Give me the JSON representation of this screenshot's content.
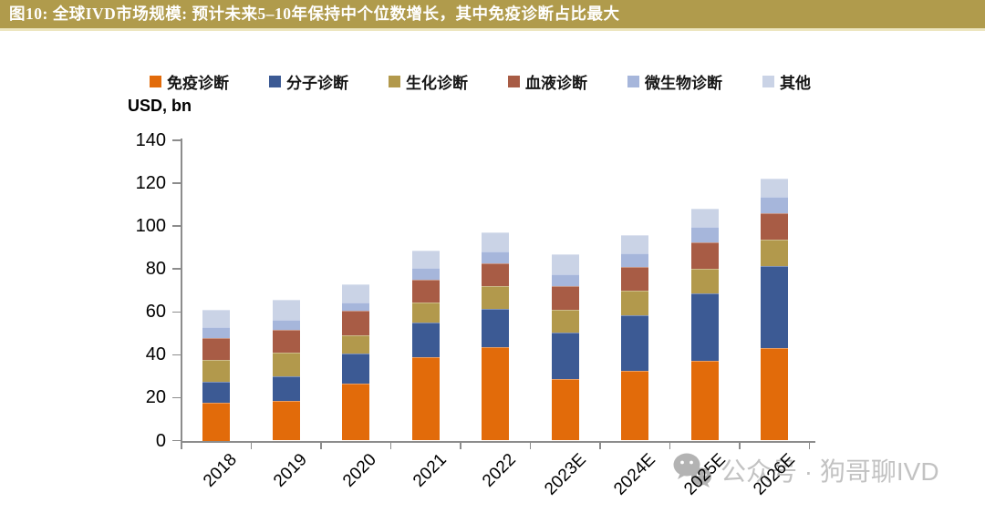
{
  "header": {
    "title": "图10:  全球IVD市场规模:  预计未来5–10年保持中个位数增长，其中免疫诊断占比最大",
    "bar_color": "#B09B4C"
  },
  "watermark": {
    "text": "公众号 · 狗哥聊IVD",
    "icon": "wechat-icon",
    "color": "#C2C2C2"
  },
  "chart_data": {
    "type": "bar",
    "stacked": true,
    "unit_label": "USD, bn",
    "categories": [
      "2018",
      "2019",
      "2020",
      "2021",
      "2022",
      "2023E",
      "2024E",
      "2025E",
      "2026E"
    ],
    "series": [
      {
        "name": "免疫诊断",
        "color": "#E26B0A",
        "values": [
          17.5,
          18.5,
          26.5,
          39,
          43.5,
          28.5,
          32.5,
          37,
          43
        ]
      },
      {
        "name": "分子诊断",
        "color": "#3C5A94",
        "values": [
          10,
          11.5,
          14,
          16,
          18,
          22,
          26,
          31.5,
          38.5
        ]
      },
      {
        "name": "生化诊断",
        "color": "#B2994C",
        "values": [
          10,
          11,
          8.5,
          9.5,
          10.5,
          10.5,
          11.5,
          11.5,
          12
        ]
      },
      {
        "name": "血液诊断",
        "color": "#A85C45",
        "values": [
          10.5,
          10.5,
          11.5,
          10.5,
          10.5,
          11,
          11,
          12.5,
          12.5
        ]
      },
      {
        "name": "微生物诊断",
        "color": "#A6B6DB",
        "values": [
          5,
          5,
          4,
          5.5,
          5.5,
          5.5,
          6.5,
          7,
          7.5
        ]
      },
      {
        "name": "其他",
        "color": "#CAD3E6",
        "values": [
          8,
          9,
          8.5,
          8,
          9,
          9.5,
          8.5,
          8.5,
          8.5
        ]
      }
    ],
    "totals": [
      61,
      66,
      73,
      89,
      97,
      87,
      96,
      108,
      122
    ],
    "ylabel": "USD, bn",
    "xlabel": "",
    "ylim": [
      0,
      140
    ],
    "yticks": [
      0,
      20,
      40,
      60,
      80,
      100,
      120,
      140
    ],
    "legend_position": "top",
    "grid": false,
    "axis_color": "#8C8C8C"
  }
}
